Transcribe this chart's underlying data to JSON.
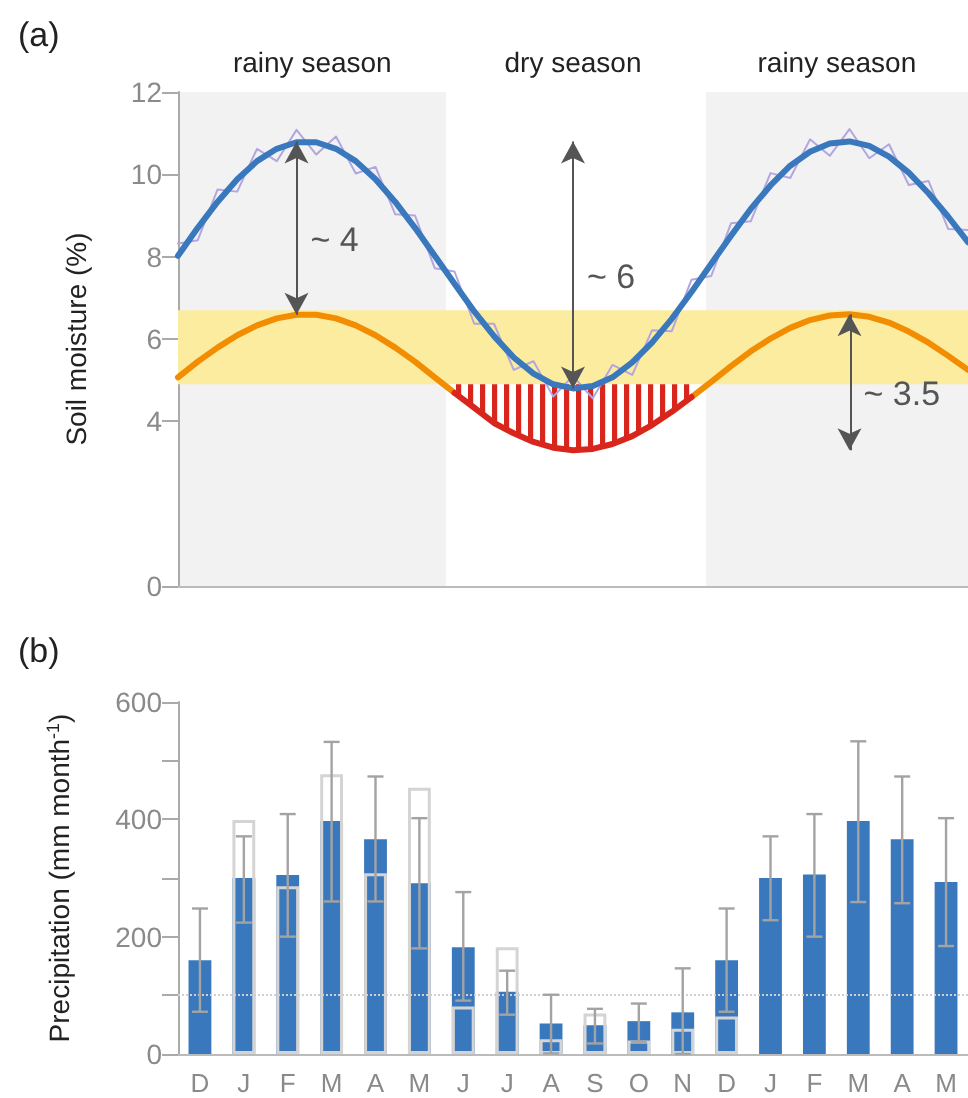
{
  "chart_data": [
    {
      "type": "line",
      "title": "(a)",
      "ylabel": "Soil moisture (%)",
      "tick_labels": "y",
      "categories": [
        null,
        null,
        null,
        null,
        null,
        null,
        null,
        null,
        null,
        null,
        null,
        null,
        null,
        null,
        null,
        null,
        null,
        null,
        null,
        null,
        null,
        null,
        null,
        null,
        null,
        null,
        null,
        null,
        null,
        null,
        null,
        null,
        null,
        null,
        null,
        null,
        null,
        null,
        null,
        null,
        null
      ],
      "ylim": [
        0,
        12
      ],
      "yticks": [
        0,
        4,
        6,
        8,
        10,
        12
      ],
      "series": [
        {
          "color": "#b3a6e0",
          "values": [
            8.32,
            8.4,
            9.63,
            9.58,
            10.62,
            10.32,
            11.08,
            10.48,
            10.92,
            10.02,
            10.18,
            9.03,
            9.0,
            7.72,
            7.64,
            6.37,
            6.37,
            5.25,
            5.46,
            4.6,
            5.1,
            4.56,
            5.37,
            5.13,
            6.21,
            6.19,
            7.44,
            7.53,
            8.81,
            8.86,
            10.03,
            9.91,
            10.85,
            10.45,
            11.1,
            10.39,
            10.73,
            9.74,
            9.84,
            8.67,
            8.65
          ]
        },
        {
          "color": "#3a78bd",
          "values": [
            8.02,
            8.7,
            9.33,
            9.88,
            10.32,
            10.62,
            10.78,
            10.78,
            10.62,
            10.32,
            9.88,
            9.33,
            8.7,
            8.02,
            7.34,
            6.67,
            6.07,
            5.55,
            5.16,
            4.9,
            4.8,
            4.86,
            5.07,
            5.43,
            5.91,
            6.49,
            7.14,
            7.83,
            8.51,
            9.16,
            9.73,
            10.21,
            10.55,
            10.75,
            10.8,
            10.69,
            10.43,
            10.04,
            9.54,
            8.97,
            8.35
          ]
        },
        {
          "color": "#f28c00",
          "values": [
            5.07,
            5.45,
            5.79,
            6.09,
            6.33,
            6.5,
            6.59,
            6.59,
            6.5,
            6.33,
            6.09,
            5.79,
            5.45,
            5.07,
            4.69,
            null,
            null,
            null,
            null,
            null,
            null,
            null,
            null,
            null,
            null,
            null,
            null,
            null,
            null,
            null,
            null,
            null,
            null,
            null,
            null,
            null,
            null,
            null,
            null,
            null,
            null
          ]
        },
        {
          "color": "#f28c00",
          "values": [
            null,
            null,
            null,
            null,
            null,
            null,
            null,
            null,
            null,
            null,
            null,
            null,
            null,
            null,
            null,
            null,
            null,
            null,
            null,
            null,
            null,
            null,
            null,
            null,
            null,
            null,
            4.59,
            4.96,
            5.34,
            5.7,
            6.01,
            6.27,
            6.46,
            6.57,
            6.6,
            6.54,
            6.4,
            6.18,
            5.91,
            5.59,
            5.25
          ]
        },
        {
          "color": "#d9261c",
          "values": [
            null,
            null,
            null,
            null,
            null,
            null,
            null,
            null,
            null,
            null,
            null,
            null,
            null,
            null,
            4.69,
            4.33,
            3.96,
            3.71,
            3.5,
            3.36,
            3.3,
            3.33,
            3.45,
            3.64,
            3.91,
            4.23,
            4.59,
            null,
            null,
            null,
            null,
            null,
            null,
            null,
            null,
            null,
            null,
            null,
            null,
            null,
            null
          ],
          "lower": [
            null,
            null,
            null,
            null,
            null,
            null,
            null,
            null,
            null,
            null,
            null,
            null,
            null,
            null,
            4.69,
            4.33,
            3.96,
            3.71,
            3.5,
            3.36,
            3.3,
            3.33,
            3.45,
            3.64,
            3.91,
            4.23,
            4.59,
            null,
            null,
            null,
            null,
            null,
            null,
            null,
            null,
            null,
            null,
            null,
            null,
            null,
            null
          ],
          "upper": [
            null,
            null,
            null,
            null,
            null,
            null,
            null,
            null,
            null,
            null,
            null,
            null,
            null,
            null,
            4.9,
            4.9,
            4.9,
            4.9,
            4.9,
            4.9,
            4.9,
            4.9,
            4.9,
            4.9,
            4.9,
            4.9,
            4.9,
            null,
            null,
            null,
            null,
            null,
            null,
            null,
            null,
            null,
            null,
            null,
            null,
            null,
            null
          ]
        }
      ],
      "bands": [
        {
          "axis": "y",
          "from": 4.9,
          "to": 6.7,
          "color": "#fcec9f"
        }
      ],
      "annotations": [
        "rainy season",
        "dry season",
        "rainy season",
        "~ 4",
        "~ 6",
        "~ 3.5"
      ]
    },
    {
      "type": "bar",
      "title": "(b)",
      "ylabel": "Precipitation (mm month$^{-1}$)",
      "categories": [
        "D",
        "J",
        "F",
        "M",
        "A",
        "M",
        "J",
        "J",
        "A",
        "S",
        "O",
        "N",
        "D",
        "J",
        "F",
        "M",
        "A",
        "M"
      ],
      "ylim": [
        0,
        600
      ],
      "yticks": [
        0,
        {
          "value": 100,
          "label": null
        },
        200,
        {
          "value": 300,
          "label": null
        },
        400,
        {
          "value": 500,
          "label": null
        },
        600
      ],
      "series": [
        {
          "color": "#3a78bd",
          "values": [
            160,
            300,
            305,
            397,
            366,
            291,
            182,
            106,
            52,
            49,
            56,
            71,
            160,
            300,
            306,
            397,
            366,
            293
          ],
          "errors": [
            [
              72,
              248
            ],
            [
              224,
              371
            ],
            [
              200,
              409
            ],
            [
              260,
              532
            ],
            [
              260,
              473
            ],
            [
              180,
              402
            ],
            [
              91,
              276
            ],
            [
              67,
              142
            ],
            [
              1,
              101
            ],
            [
              18,
              77
            ],
            [
              21,
              86
            ],
            [
              0,
              146
            ],
            [
              72,
              248
            ],
            [
              228,
              371
            ],
            [
              200,
              409
            ],
            [
              259,
              533
            ],
            [
              257,
              473
            ],
            [
              184,
              402
            ]
          ]
        },
        {
          "color": "#d4d4d4",
          "values": [
            null,
            399,
            286,
            477,
            308,
            454,
            81,
            182,
            25,
            69,
            23,
            43,
            64,
            null,
            null,
            null,
            null,
            null
          ]
        }
      ],
      "ref_lines": [
        {
          "axis": "y",
          "value": 100,
          "color": "#d0d0d0",
          "line_style": "dotted"
        }
      ]
    }
  ]
}
